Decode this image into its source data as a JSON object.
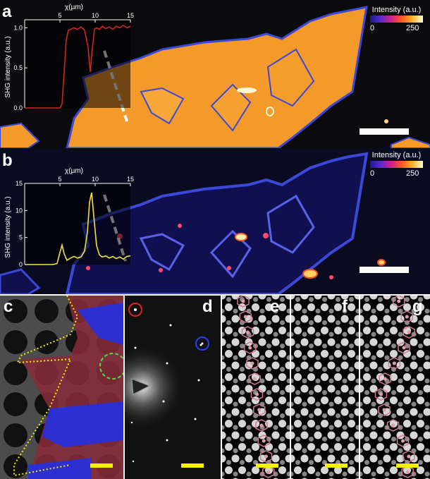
{
  "figure": {
    "panels": {
      "a": {
        "label": "a"
      },
      "b": {
        "label": "b"
      },
      "c": {
        "label": "c"
      },
      "d": {
        "label": "d"
      },
      "e": {
        "label": "e"
      },
      "f": {
        "label": "f"
      },
      "g": {
        "label": "g"
      }
    },
    "colorbar": {
      "title": "Intensity (a.u.)",
      "min_label": "0",
      "max_label": "250"
    },
    "colors": {
      "profile_a": "#d0261c",
      "profile_b": "#f3e23a",
      "scalebar_yellow": "#f2f200",
      "crystal_high": "#f39a2a",
      "edge_blue": "#3a49d8",
      "dark_bg": "#0b0b0e"
    }
  },
  "chart_data": [
    {
      "type": "line",
      "panel": "a",
      "xlabel": "χ(μm)",
      "ylabel": "SHG intensity (a.u.)",
      "xlim": [
        0,
        15
      ],
      "ylim": [
        0,
        1.1
      ],
      "xticks": [
        "5",
        "10",
        "15"
      ],
      "yticks": [
        "0.0",
        "0.5",
        "1.0"
      ],
      "series": [
        {
          "x": [
            0,
            1,
            2,
            3,
            4,
            5,
            5.3,
            5.6,
            5.9,
            6.2,
            6.5,
            7,
            7.5,
            8,
            8.5,
            9,
            9.3,
            9.6,
            9.9,
            10.2,
            10.6,
            11,
            11.5,
            12,
            12.5,
            13,
            13.5,
            14,
            14.5,
            15
          ],
          "y": [
            0,
            0,
            0,
            0,
            0,
            0,
            0.05,
            0.45,
            0.85,
            0.97,
            0.98,
            1.0,
            0.98,
            1.01,
            0.97,
            0.75,
            0.45,
            0.75,
            0.98,
            1.0,
            0.98,
            1.02,
            0.99,
            1.01,
            0.98,
            1.02,
            1.0,
            1.03,
            1.0,
            1.02
          ]
        }
      ]
    },
    {
      "type": "line",
      "panel": "b",
      "xlabel": "χ(μm)",
      "ylabel": "SHG intensity (a.u.)",
      "xlim": [
        0,
        15
      ],
      "ylim": [
        0,
        15
      ],
      "xticks": [
        "5",
        "10",
        "15"
      ],
      "yticks": [
        "0",
        "5",
        "10",
        "15"
      ],
      "series": [
        {
          "x": [
            0,
            1,
            2,
            3,
            4,
            4.6,
            5.0,
            5.3,
            5.6,
            6.0,
            6.5,
            7,
            7.5,
            8,
            8.5,
            8.9,
            9.2,
            9.5,
            9.8,
            10.2,
            10.6,
            11,
            11.5,
            12,
            12.5,
            13,
            13.5,
            14,
            14.5,
            15
          ],
          "y": [
            0,
            0,
            0,
            0,
            0,
            0.2,
            2.2,
            3.6,
            2.0,
            0.8,
            1.2,
            1.5,
            1.2,
            1.4,
            2.5,
            6.0,
            11.5,
            13.3,
            9.0,
            3.5,
            1.8,
            1.4,
            1.6,
            1.2,
            1.5,
            1.1,
            1.4,
            1.0,
            1.5,
            1.6
          ]
        }
      ]
    }
  ]
}
